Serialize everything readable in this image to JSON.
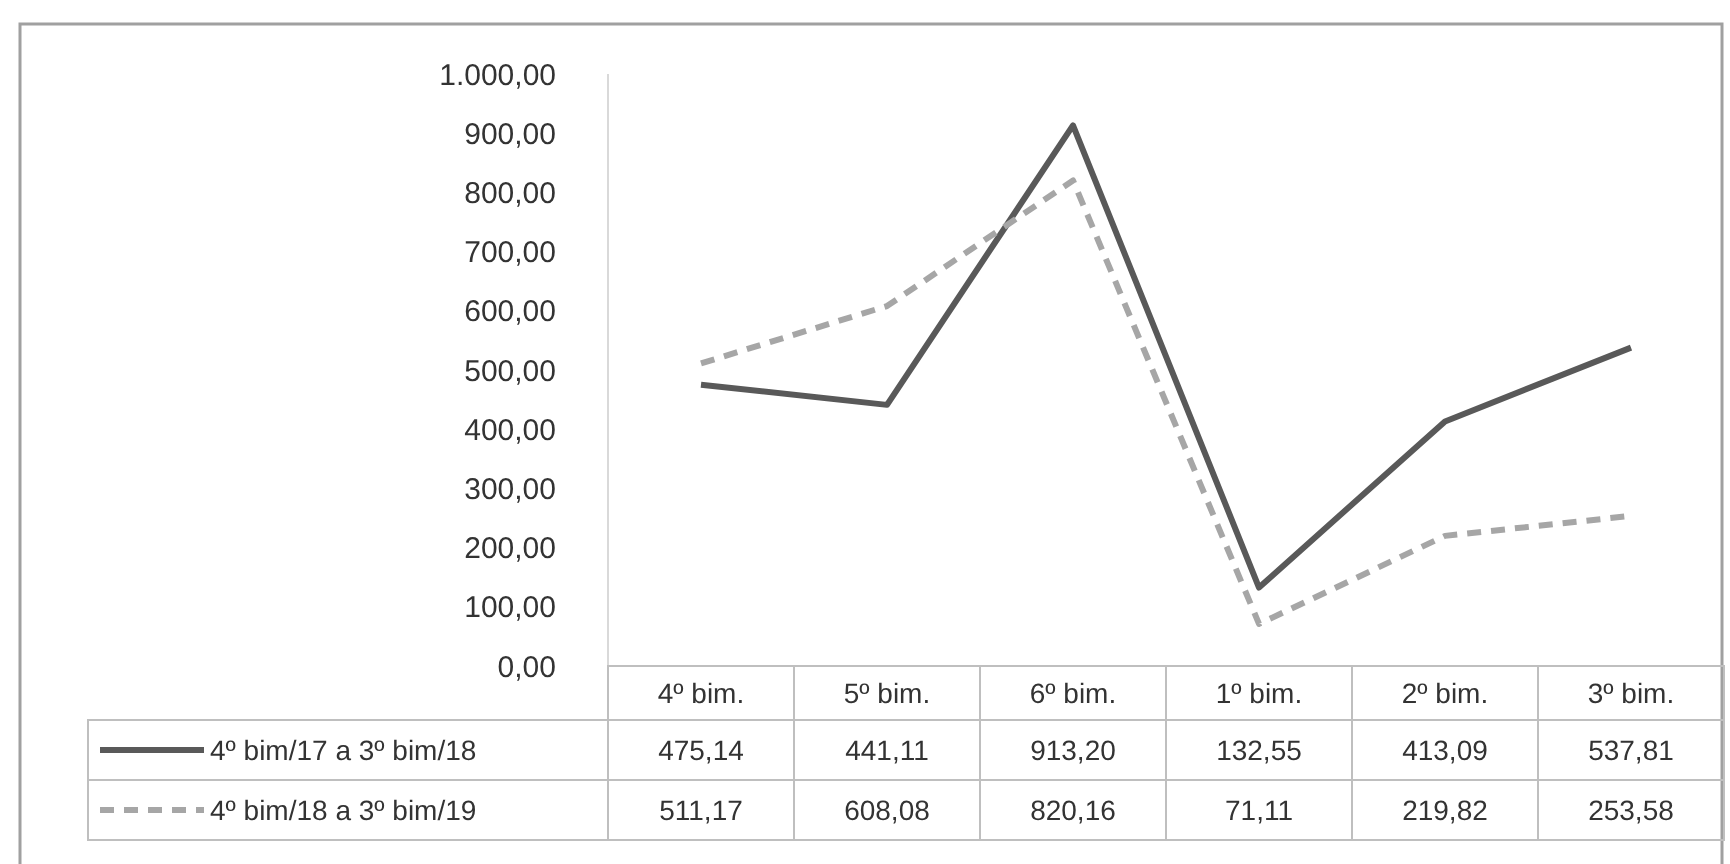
{
  "chart_data": {
    "type": "line",
    "categories": [
      "4º bim.",
      "5º bim.",
      "6º bim.",
      "1º bim.",
      "2º bim.",
      "3º bim."
    ],
    "series": [
      {
        "name": "4º bim/17 a 3º bim/18",
        "color": "#595959",
        "line_style": "solid",
        "values": [
          475.14,
          441.11,
          913.2,
          132.55,
          413.09,
          537.81
        ],
        "value_labels": [
          "475,14",
          "441,11",
          "913,20",
          "132,55",
          "413,09",
          "537,81"
        ]
      },
      {
        "name": "4º bim/18 a 3º bim/19",
        "color": "#a6a6a6",
        "line_style": "dashed",
        "values": [
          511.17,
          608.08,
          820.16,
          71.11,
          219.82,
          253.58
        ],
        "value_labels": [
          "511,17",
          "608,08",
          "820,16",
          "71,11",
          "219,82",
          "253,58"
        ]
      }
    ],
    "ylim": [
      0,
      1000
    ],
    "yticks": [
      {
        "value": 0,
        "label": "0,00"
      },
      {
        "value": 100,
        "label": "100,00"
      },
      {
        "value": 200,
        "label": "200,00"
      },
      {
        "value": 300,
        "label": "300,00"
      },
      {
        "value": 400,
        "label": "400,00"
      },
      {
        "value": 500,
        "label": "500,00"
      },
      {
        "value": 600,
        "label": "600,00"
      },
      {
        "value": 700,
        "label": "700,00"
      },
      {
        "value": 800,
        "label": "800,00"
      },
      {
        "value": 900,
        "label": "900,00"
      },
      {
        "value": 1000,
        "label": "1.000,00"
      }
    ],
    "grid": false,
    "legend": "bottom",
    "marker": "none"
  }
}
